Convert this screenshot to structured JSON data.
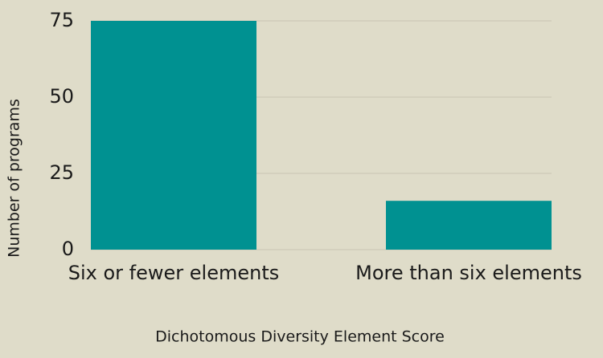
{
  "chart_data": {
    "type": "bar",
    "categories": [
      "Six or fewer elements",
      "More than six elements"
    ],
    "values": [
      75,
      16
    ],
    "color": "#009191",
    "ylim": [
      0,
      75
    ],
    "yticks": [
      0,
      25,
      50,
      75
    ],
    "grid": true,
    "xlabel": "Dichotomous Diversity Element Score",
    "ylabel": "Number of programs"
  }
}
